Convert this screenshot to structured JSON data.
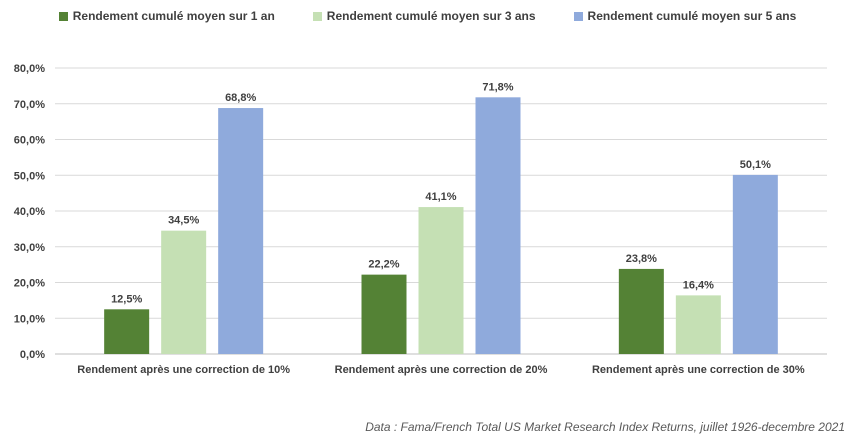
{
  "chart_data": {
    "type": "bar",
    "categories": [
      "Rendement après une correction de 10%",
      "Rendement après une correction de 20%",
      "Rendement après une correction de 30%"
    ],
    "series": [
      {
        "name": "Rendement cumulé moyen sur 1 an",
        "color": "#548235",
        "values": [
          12.5,
          22.2,
          23.8
        ],
        "labels": [
          "12,5%",
          "22,2%",
          "23,8%"
        ]
      },
      {
        "name": "Rendement cumulé moyen sur 3 ans",
        "color": "#C5E0B4",
        "values": [
          34.5,
          41.1,
          16.4
        ],
        "labels": [
          "34,5%",
          "41,1%",
          "16,4%"
        ]
      },
      {
        "name": "Rendement cumulé moyen sur 5 ans",
        "color": "#8FAADC",
        "values": [
          68.8,
          71.8,
          50.1
        ],
        "labels": [
          "68,8%",
          "71,8%",
          "50,1%"
        ]
      }
    ],
    "yticks": [
      0,
      10,
      20,
      30,
      40,
      50,
      60,
      70,
      80
    ],
    "ytick_labels": [
      "0,0%",
      "10,0%",
      "20,0%",
      "30,0%",
      "40,0%",
      "50,0%",
      "60,0%",
      "70,0%",
      "80,0%"
    ],
    "ylim": [
      0,
      80
    ],
    "grid": true,
    "legend": "top-center",
    "xlabel": "",
    "ylabel": ""
  },
  "source": "Data : Fama/French Total US Market Research Index Returns, juillet 1926-decembre 2021"
}
